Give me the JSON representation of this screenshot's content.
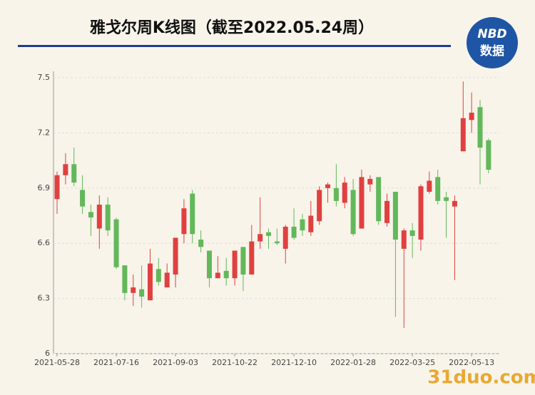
{
  "header": {
    "logo_top": "NBD",
    "logo_bottom": "数据"
  },
  "watermark": "31duo.com",
  "chart_data": {
    "type": "candlestick",
    "title": "雅戈尔周K线图（截至2022.05.24周）",
    "categories": [
      "2021-05-28",
      null,
      null,
      null,
      null,
      null,
      null,
      "2021-07-16",
      null,
      null,
      null,
      null,
      null,
      null,
      "2021-09-03",
      null,
      null,
      null,
      null,
      null,
      null,
      "2021-10-22",
      null,
      null,
      null,
      null,
      null,
      null,
      "2021-12-10",
      null,
      null,
      null,
      null,
      null,
      null,
      "2022-01-28",
      null,
      null,
      null,
      null,
      null,
      null,
      "2022-03-25",
      null,
      null,
      null,
      null,
      null,
      null,
      "2022-05-13",
      null,
      null
    ],
    "open": [
      6.84,
      6.97,
      7.03,
      6.89,
      6.77,
      6.68,
      6.81,
      6.73,
      6.48,
      6.33,
      6.35,
      6.29,
      6.46,
      6.36,
      6.43,
      6.65,
      6.87,
      6.62,
      6.56,
      6.41,
      6.45,
      6.41,
      6.58,
      6.43,
      6.61,
      6.66,
      6.61,
      6.57,
      6.69,
      6.73,
      6.66,
      6.72,
      6.9,
      6.9,
      6.82,
      6.89,
      6.68,
      6.92,
      6.96,
      6.71,
      6.88,
      6.57,
      6.67,
      6.62,
      6.88,
      6.96,
      6.85,
      6.8,
      7.1,
      7.27,
      7.34,
      7.16
    ],
    "high": [
      6.99,
      7.09,
      7.12,
      6.97,
      6.81,
      6.86,
      6.85,
      6.74,
      6.48,
      6.43,
      6.48,
      6.57,
      6.52,
      6.49,
      6.63,
      6.84,
      6.89,
      6.67,
      6.56,
      6.53,
      6.52,
      6.56,
      6.58,
      6.7,
      6.85,
      6.68,
      6.68,
      6.7,
      6.79,
      6.76,
      6.83,
      6.91,
      6.93,
      7.03,
      6.96,
      6.95,
      7.0,
      6.97,
      6.96,
      6.87,
      6.88,
      6.68,
      6.71,
      6.92,
      6.99,
      7.0,
      6.88,
      6.86,
      7.48,
      7.42,
      7.38,
      7.17
    ],
    "low": [
      6.76,
      6.92,
      6.91,
      6.76,
      6.64,
      6.57,
      6.64,
      6.46,
      6.29,
      6.26,
      6.25,
      6.29,
      6.37,
      6.36,
      6.36,
      6.6,
      6.6,
      6.55,
      6.36,
      6.41,
      6.37,
      6.37,
      6.34,
      6.43,
      6.57,
      6.57,
      6.59,
      6.49,
      6.62,
      6.64,
      6.64,
      6.7,
      6.82,
      6.8,
      6.79,
      6.64,
      6.68,
      6.88,
      6.7,
      6.69,
      6.2,
      6.14,
      6.52,
      6.56,
      6.87,
      6.81,
      6.63,
      6.4,
      7.1,
      7.2,
      6.92,
      6.98
    ],
    "close": [
      6.97,
      7.03,
      6.93,
      6.8,
      6.74,
      6.81,
      6.67,
      6.47,
      6.33,
      6.36,
      6.31,
      6.49,
      6.39,
      6.44,
      6.63,
      6.79,
      6.65,
      6.58,
      6.41,
      6.44,
      6.41,
      6.56,
      6.43,
      6.61,
      6.65,
      6.64,
      6.6,
      6.69,
      6.63,
      6.67,
      6.75,
      6.89,
      6.92,
      6.83,
      6.93,
      6.65,
      6.96,
      6.95,
      6.72,
      6.83,
      6.62,
      6.67,
      6.64,
      6.91,
      6.94,
      6.83,
      6.83,
      6.83,
      7.28,
      7.31,
      7.12,
      7.0
    ],
    "up_color": "#e04040",
    "down_color": "#62b85a",
    "ylim": [
      6,
      7.5
    ],
    "yticks": [
      6,
      6.3,
      6.6,
      6.9,
      7.2,
      7.5
    ],
    "grid": true
  }
}
